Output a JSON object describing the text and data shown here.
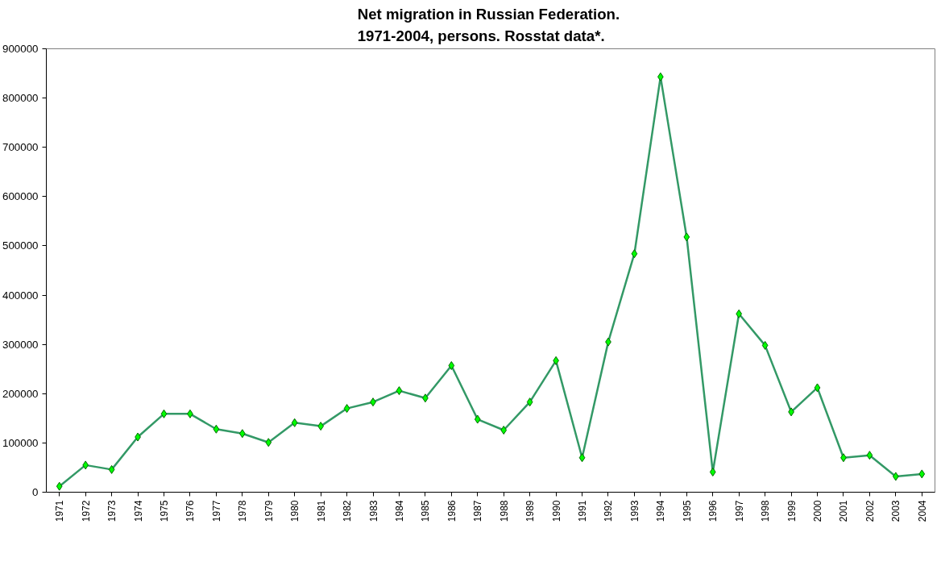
{
  "chart_data": {
    "type": "line",
    "title": "Net migration in  Russian Federation.\n1971-2004, persons. Rosstat data*.",
    "categories": [
      "1971",
      "1972",
      "1973",
      "1974",
      "1975",
      "1976",
      "1977",
      "1978",
      "1979",
      "1980",
      "1981",
      "1982",
      "1983",
      "1984",
      "1985",
      "1986",
      "1987",
      "1988",
      "1989",
      "1990",
      "1991",
      "1992",
      "1993",
      "1994",
      "1995",
      "1996",
      "1997",
      "1998",
      "1999",
      "2000",
      "2001",
      "2002",
      "2003",
      "2004"
    ],
    "series": [
      {
        "color": "#339966",
        "values": [
          12000,
          55000,
          46000,
          112000,
          159000,
          159000,
          128000,
          119000,
          101000,
          141000,
          134000,
          170000,
          183000,
          206000,
          191000,
          257000,
          148000,
          126000,
          183000,
          267000,
          70000,
          305000,
          484000,
          843000,
          518000,
          41000,
          362000,
          298000,
          163000,
          212000,
          70000,
          75000,
          32000,
          37000
        ]
      }
    ],
    "ylim": [
      0,
      900000
    ],
    "yticks": [
      0,
      100000,
      200000,
      300000,
      400000,
      500000,
      600000,
      700000,
      800000,
      900000
    ],
    "marker": "diamond",
    "grid": false
  }
}
